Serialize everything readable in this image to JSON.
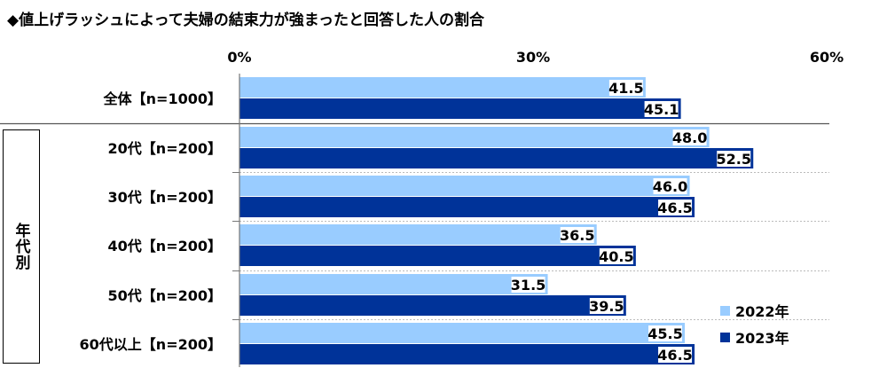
{
  "title": "◆値上げラッシュによって夫婦の結束力が強まったと回答した人の割合",
  "group_label": "年代別",
  "chart_data": {
    "type": "bar",
    "orientation": "horizontal",
    "title": "◆値上げラッシュによって夫婦の結束力が強まったと回答した人の割合",
    "categories": [
      "全体【n=1000】",
      "20代【n=200】",
      "30代【n=200】",
      "40代【n=200】",
      "50代【n=200】",
      "60代以上【n=200】"
    ],
    "series": [
      {
        "name": "2022年",
        "color": "#99CCFF",
        "values": [
          41.5,
          48.0,
          46.0,
          36.5,
          31.5,
          45.5
        ]
      },
      {
        "name": "2023年",
        "color": "#003399",
        "values": [
          45.1,
          52.5,
          46.5,
          40.5,
          39.5,
          46.5
        ]
      }
    ],
    "xlim": [
      0,
      60
    ],
    "xticks": [
      "0%",
      "30%",
      "60%"
    ],
    "legend": "bottom-right"
  }
}
